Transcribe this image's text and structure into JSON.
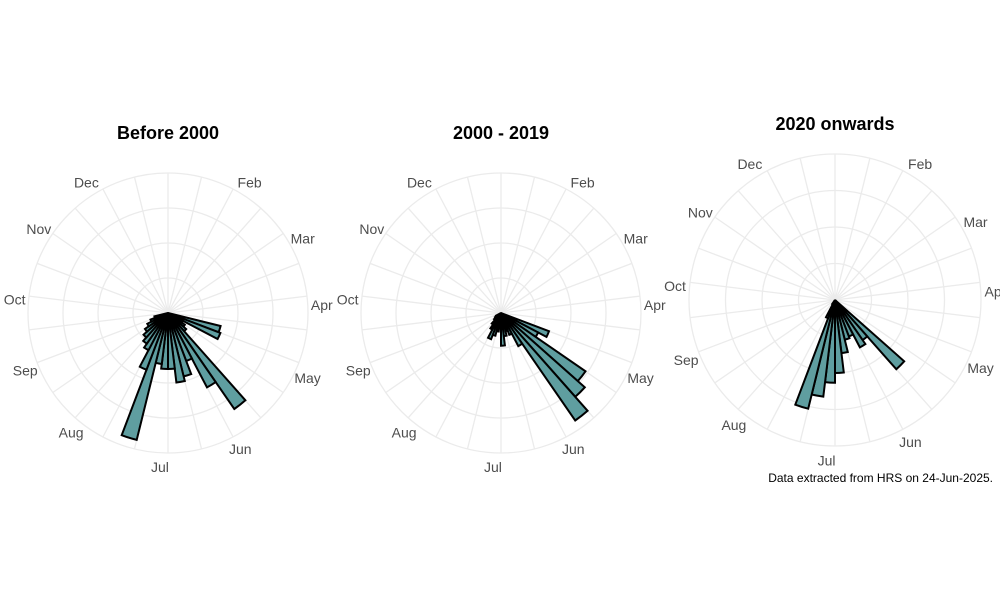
{
  "bar_color": "#5f9ea0",
  "caption": "Data extracted from HRS on 24-Jun-2025.",
  "chart_data": [
    {
      "type": "bar",
      "coord": "polar",
      "title": "Before 2000",
      "theta_labels": [
        "Dec",
        "Feb",
        "Mar",
        "Apr",
        "May",
        "Jun",
        "Jul",
        "Aug",
        "Sep",
        "Oct",
        "Nov"
      ],
      "x_unit": "week of year",
      "x": [
        15,
        16,
        17,
        18,
        19,
        20,
        21,
        22,
        23,
        24,
        25,
        26,
        27,
        28,
        29,
        30,
        31,
        32,
        33,
        34,
        35,
        36,
        37
      ],
      "values": [
        0,
        58,
        60,
        18,
        22,
        26,
        125,
        90,
        55,
        70,
        75,
        60,
        60,
        55,
        140,
        65,
        45,
        40,
        35,
        30,
        25,
        20,
        15
      ]
    },
    {
      "type": "bar",
      "coord": "polar",
      "title": "2000 - 2019",
      "theta_labels": [
        "Dec",
        "Feb",
        "Mar",
        "Apr",
        "May",
        "Jun",
        "Jul",
        "Aug",
        "Sep",
        "Oct",
        "Nov"
      ],
      "x_unit": "week of year",
      "x": [
        15,
        16,
        17,
        18,
        19,
        20,
        21,
        22,
        23,
        24,
        25,
        26,
        27,
        28,
        29,
        30,
        31,
        32,
        33,
        34,
        35,
        36,
        37
      ],
      "values": [
        0,
        0,
        55,
        45,
        110,
        120,
        140,
        40,
        25,
        20,
        25,
        35,
        15,
        20,
        25,
        30,
        20,
        15,
        10,
        8,
        6,
        0,
        0
      ]
    },
    {
      "type": "bar",
      "coord": "polar",
      "title": "2020 onwards",
      "theta_labels": [
        "Dec",
        "Feb",
        "Mar",
        "Apr",
        "May",
        "Jun",
        "Jul",
        "Aug",
        "Sep",
        "Oct",
        "Nov"
      ],
      "x_unit": "week of year",
      "x": [
        16,
        17,
        18,
        19,
        20,
        21,
        22,
        23,
        24,
        25,
        26,
        27,
        28,
        29,
        30,
        31
      ],
      "values": [
        0,
        0,
        0,
        0,
        95,
        50,
        55,
        40,
        42,
        55,
        75,
        85,
        100,
        115,
        20,
        5
      ]
    }
  ]
}
